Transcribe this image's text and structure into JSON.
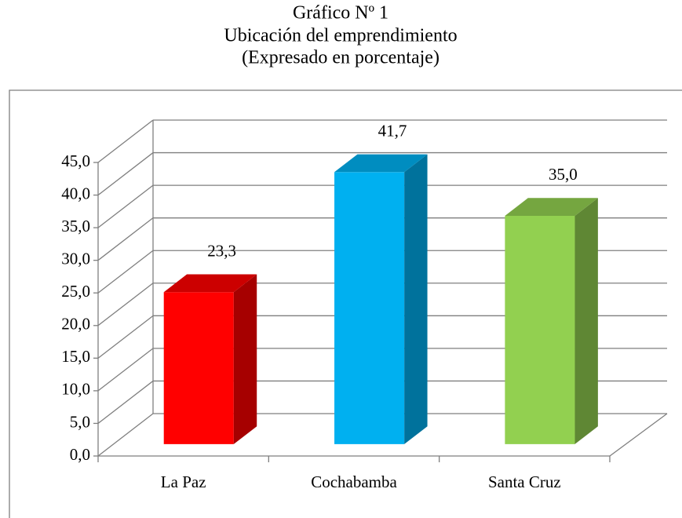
{
  "chart_data": {
    "type": "bar3d",
    "title": [
      "Gráfico Nº 1",
      "Ubicación del emprendimiento",
      "(Expresado en porcentaje)"
    ],
    "categories": [
      "La Paz",
      "Cochabamba",
      "Santa Cruz"
    ],
    "values": [
      23.3,
      41.7,
      35.0
    ],
    "value_labels": [
      "23,3",
      "41,7",
      "35,0"
    ],
    "colors": [
      "#ff0000",
      "#00b0f0",
      "#92d050"
    ],
    "ylim": [
      0,
      45
    ],
    "yticks": [
      {
        "value": 0,
        "label": "0,0"
      },
      {
        "value": 5,
        "label": "5,0"
      },
      {
        "value": 10,
        "label": "10,0"
      },
      {
        "value": 15,
        "label": "15,0"
      },
      {
        "value": 20,
        "label": "20,0"
      },
      {
        "value": 25,
        "label": "25,0"
      },
      {
        "value": 30,
        "label": "30,0"
      },
      {
        "value": 35,
        "label": "35,0"
      },
      {
        "value": 40,
        "label": "40,0"
      },
      {
        "value": 45,
        "label": "45,0"
      }
    ],
    "grid": true
  }
}
